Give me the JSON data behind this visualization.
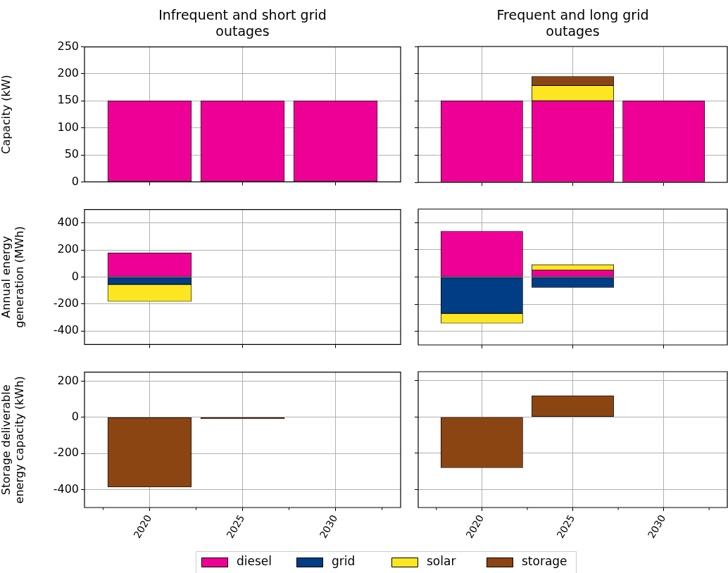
{
  "chart_data": [
    {
      "type": "bar",
      "title": "Infrequent and short grid outages",
      "ylabel": "Capacity (kW)",
      "x": [
        2020,
        2025,
        2030
      ],
      "xlim": [
        2016.5,
        2033.5
      ],
      "xticks": [
        {
          "value": 2020,
          "label": null
        },
        {
          "value": 2025,
          "label": null
        },
        {
          "value": 2030,
          "label": null
        }
      ],
      "ylim": [
        0,
        250
      ],
      "yticks": [
        0,
        50,
        100,
        150,
        200,
        250
      ],
      "stacked": true,
      "grid": true,
      "tick_labels": "y",
      "series": [
        {
          "color": "#ee0097",
          "values": [
            150,
            150,
            150
          ]
        }
      ]
    },
    {
      "type": "bar",
      "title": "Frequent and long grid outages",
      "x": [
        2020,
        2025,
        2030
      ],
      "xlim": [
        2016.5,
        2033.5
      ],
      "xticks": [
        {
          "value": 2020,
          "label": null
        },
        {
          "value": 2025,
          "label": null
        },
        {
          "value": 2030,
          "label": null
        }
      ],
      "ylim": [
        0,
        250
      ],
      "yticks": [
        {
          "value": 0,
          "label": null
        },
        {
          "value": 50,
          "label": null
        },
        {
          "value": 100,
          "label": null
        },
        {
          "value": 150,
          "label": null
        },
        {
          "value": 200,
          "label": null
        },
        {
          "value": 250,
          "label": null
        }
      ],
      "stacked": true,
      "grid": true,
      "tick_labels": false,
      "series": [
        {
          "color": "#ee0097",
          "values": [
            150,
            150,
            150
          ]
        },
        {
          "color": "#fce621",
          "values": [
            null,
            28,
            null
          ]
        },
        {
          "color": "#8b4513",
          "values": [
            null,
            17,
            null
          ]
        }
      ]
    },
    {
      "type": "bar",
      "ylabel": "Annual energy generation (MWh)",
      "x": [
        2020,
        2025,
        2030
      ],
      "xlim": [
        2016.5,
        2033.5
      ],
      "xticks": [
        {
          "value": 2020,
          "label": null
        },
        {
          "value": 2025,
          "label": null
        },
        {
          "value": 2030,
          "label": null
        }
      ],
      "ylim": [
        -500,
        500
      ],
      "yticks": [
        -400,
        -200,
        0,
        200,
        400
      ],
      "stacked": true,
      "grid": true,
      "tick_labels": "y",
      "series": [
        {
          "color": "#ee0097",
          "values": [
            178,
            null,
            0
          ]
        },
        {
          "color": "#003d85",
          "values": [
            -55,
            0,
            0
          ]
        },
        {
          "color": "#fce621",
          "values": [
            -126,
            0,
            0
          ]
        }
      ]
    },
    {
      "type": "bar",
      "x": [
        2020,
        2025,
        2030
      ],
      "xlim": [
        2016.5,
        2033.5
      ],
      "xticks": [
        {
          "value": 2020,
          "label": null
        },
        {
          "value": 2025,
          "label": null
        },
        {
          "value": 2030,
          "label": null
        }
      ],
      "ylim": [
        -500,
        500
      ],
      "yticks": [
        {
          "value": -400,
          "label": null
        },
        {
          "value": -200,
          "label": null
        },
        {
          "value": 0,
          "label": null
        },
        {
          "value": 200,
          "label": null
        },
        {
          "value": 400,
          "label": null
        }
      ],
      "stacked": true,
      "grid": true,
      "tick_labels": false,
      "series": [
        {
          "color": "#ee0097",
          "values": [
            337,
            50,
            0
          ]
        },
        {
          "color": "#003d85",
          "values": [
            -268,
            -77,
            0
          ]
        },
        {
          "color": "#fce621",
          "values": [
            -72,
            41,
            0
          ]
        }
      ]
    },
    {
      "type": "bar",
      "ylabel": "Storage deliverable energy capacity (kWh)",
      "x": [
        2020,
        2025,
        2030
      ],
      "xlim": [
        2016.5,
        2033.5
      ],
      "xticks": [
        {
          "value": 2017.5,
          "label": null
        },
        {
          "value": 2020,
          "label": "2020"
        },
        {
          "value": 2022.5,
          "label": null
        },
        {
          "value": 2025,
          "label": "2025"
        },
        {
          "value": 2027.5,
          "label": null
        },
        {
          "value": 2030,
          "label": "2030"
        },
        {
          "value": 2032.5,
          "label": null
        }
      ],
      "ylim": [
        -500,
        250
      ],
      "yticks": [
        -400,
        -200,
        0,
        200
      ],
      "stacked": true,
      "grid": true,
      "legend": "bottom",
      "series": [
        {
          "name": "diesel",
          "color": "#ee0097",
          "values": [
            null,
            null,
            null
          ]
        },
        {
          "name": "grid",
          "color": "#003d85",
          "values": [
            null,
            null,
            null
          ]
        },
        {
          "name": "solar",
          "color": "#fce621",
          "values": [
            null,
            null,
            null
          ]
        },
        {
          "name": "storage",
          "color": "#8b4513",
          "values": [
            -387,
            -9,
            0
          ]
        }
      ]
    },
    {
      "type": "bar",
      "x": [
        2020,
        2025,
        2030
      ],
      "xlim": [
        2016.5,
        2033.5
      ],
      "xticks": [
        {
          "value": 2017.5,
          "label": null
        },
        {
          "value": 2020,
          "label": "2020"
        },
        {
          "value": 2022.5,
          "label": null
        },
        {
          "value": 2025,
          "label": "2025"
        },
        {
          "value": 2027.5,
          "label": null
        },
        {
          "value": 2030,
          "label": "2030"
        },
        {
          "value": 2032.5,
          "label": null
        }
      ],
      "ylim": [
        -500,
        250
      ],
      "yticks": [
        {
          "value": -400,
          "label": null
        },
        {
          "value": -200,
          "label": null
        },
        {
          "value": 0,
          "label": null
        },
        {
          "value": 200,
          "label": null
        }
      ],
      "stacked": true,
      "grid": true,
      "tick_labels": "x",
      "series": [
        {
          "color": "#8b4513",
          "values": [
            -280,
            118,
            0
          ]
        }
      ]
    }
  ]
}
